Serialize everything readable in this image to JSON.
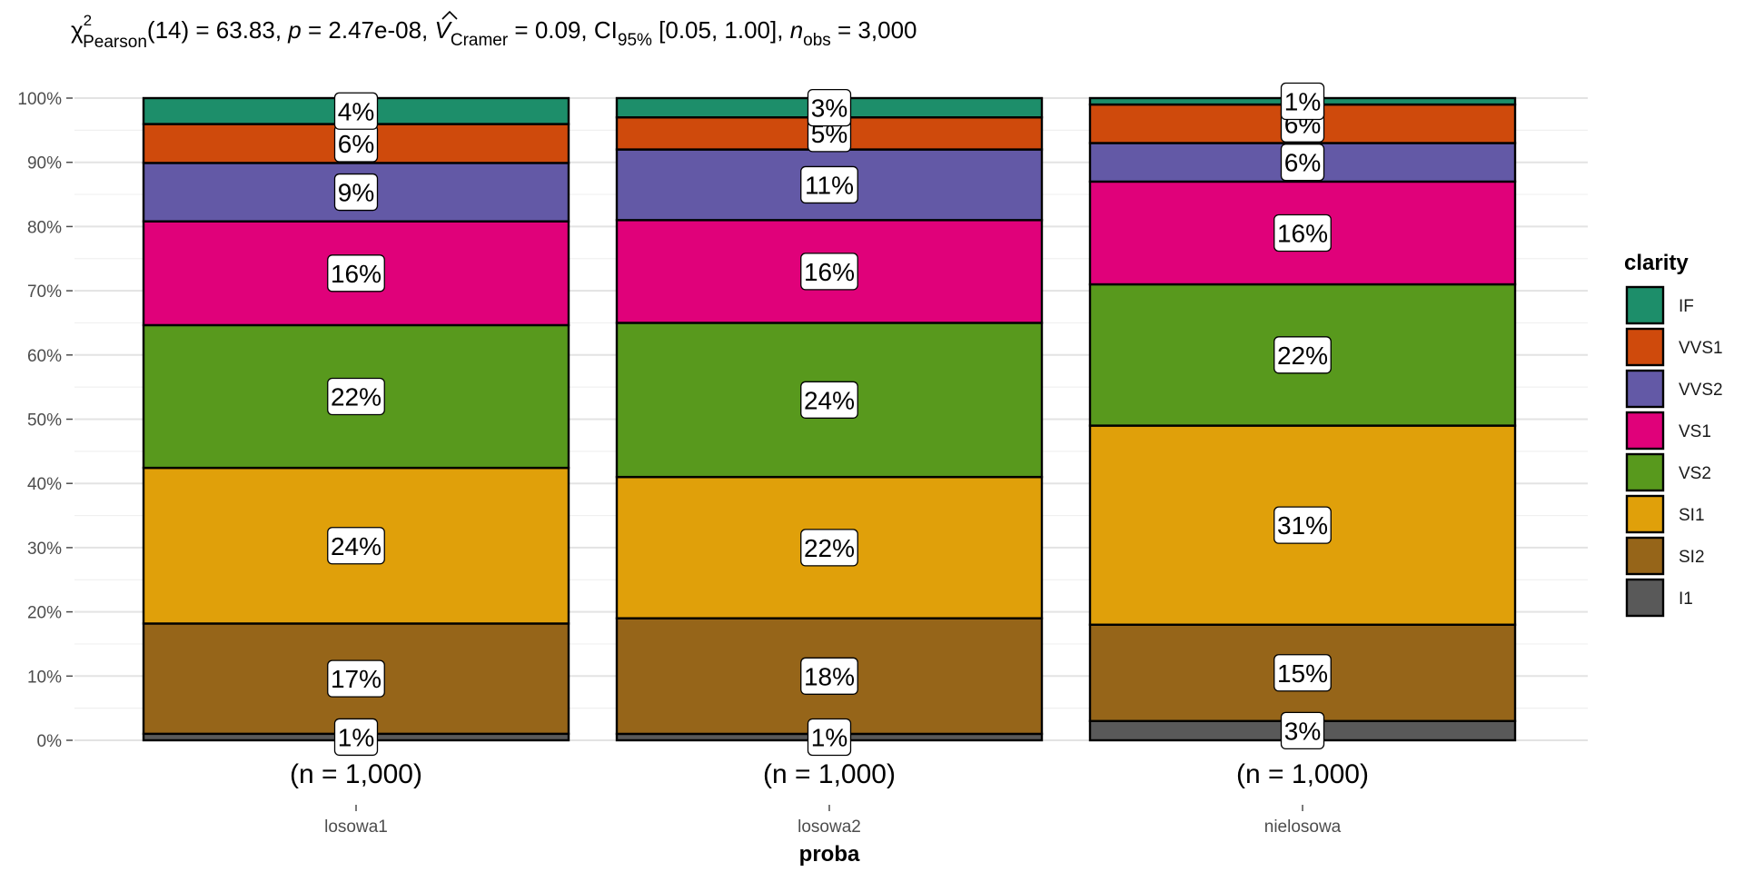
{
  "subtitle": {
    "chi": "χ",
    "chi_sup": "2",
    "chi_sub": "Pearson",
    "df": "(14) = 63.83, ",
    "p_sym": "p",
    "p_val": " = 2.47e-08, ",
    "v_sym": "V",
    "v_sub": "Cramer",
    "v_val": " = 0.09, CI",
    "ci_sub": "95%",
    "ci_val": " [0.05, 1.00], ",
    "n_sym": "n",
    "n_sub": "obs",
    "n_val": " = 3,000"
  },
  "chart_data": {
    "type": "bar",
    "stacked": true,
    "percent": true,
    "xlabel": "proba",
    "ylabel": "",
    "ylim": [
      0,
      100
    ],
    "y_ticks": [
      "0%",
      "10%",
      "20%",
      "30%",
      "40%",
      "50%",
      "60%",
      "70%",
      "80%",
      "90%",
      "100%"
    ],
    "categories": [
      "losowa1",
      "losowa2",
      "nielosowa"
    ],
    "category_counts": [
      "(n = 1,000)",
      "(n = 1,000)",
      "(n = 1,000)"
    ],
    "legend_title": "clarity",
    "legend_position": "right",
    "grid": true,
    "series": [
      {
        "name": "I1",
        "color": "#595959",
        "values": [
          1,
          1,
          3
        ],
        "labels": [
          "1%",
          "1%",
          "3%"
        ]
      },
      {
        "name": "SI2",
        "color": "#966519",
        "values": [
          17,
          18,
          15
        ],
        "labels": [
          "17%",
          "18%",
          "15%"
        ]
      },
      {
        "name": "SI1",
        "color": "#E0A00A",
        "values": [
          24,
          22,
          31
        ],
        "labels": [
          "24%",
          "22%",
          "31%"
        ]
      },
      {
        "name": "VS2",
        "color": "#58991D",
        "values": [
          22,
          24,
          22
        ],
        "labels": [
          "22%",
          "24%",
          "22%"
        ]
      },
      {
        "name": "VS1",
        "color": "#E0017A",
        "values": [
          16,
          16,
          16
        ],
        "labels": [
          "16%",
          "16%",
          "16%"
        ]
      },
      {
        "name": "VVS2",
        "color": "#6359A6",
        "values": [
          9,
          11,
          6
        ],
        "labels": [
          "9%",
          "11%",
          "6%"
        ]
      },
      {
        "name": "VVS1",
        "color": "#CF4A0C",
        "values": [
          6,
          5,
          6
        ],
        "labels": [
          "6%",
          "5%",
          "6%"
        ]
      },
      {
        "name": "IF",
        "color": "#1D8E6A",
        "values": [
          4,
          3,
          1
        ],
        "labels": [
          "4%",
          "3%",
          "1%"
        ]
      }
    ]
  }
}
